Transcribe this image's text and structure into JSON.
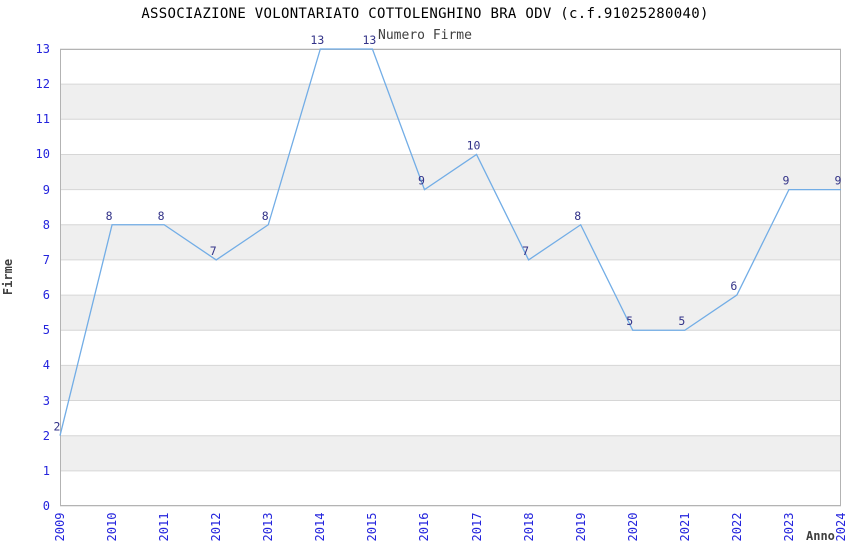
{
  "chart_data": {
    "type": "line",
    "title": "ASSOCIAZIONE VOLONTARIATO COTTOLENGHINO BRA ODV (c.f.91025280040)",
    "subtitle": "Numero Firme",
    "xlabel": "Anno",
    "ylabel": "Firme",
    "x": [
      2009,
      2010,
      2011,
      2012,
      2013,
      2014,
      2015,
      2016,
      2017,
      2018,
      2019,
      2020,
      2021,
      2022,
      2023,
      2024
    ],
    "values": [
      2,
      8,
      8,
      7,
      8,
      13,
      13,
      9,
      10,
      7,
      8,
      5,
      5,
      6,
      9,
      9
    ],
    "ylim": [
      0,
      13
    ],
    "y_ticks": [
      0,
      1,
      2,
      3,
      4,
      5,
      6,
      7,
      8,
      9,
      10,
      11,
      12,
      13
    ],
    "grid": "horizontal gridlines at every integer, alternating gray bands between odd and even values",
    "legend": "none",
    "point_labels_shown": true,
    "colors": {
      "line": "#72ade6",
      "data_label": "#333388",
      "tick_label": "#2424dd",
      "axis_label": "#404040",
      "title": "#000000",
      "band": "#efefef",
      "grid": "#d6d6d6",
      "border": "#b3b3b3",
      "background": "#ffffff"
    }
  }
}
